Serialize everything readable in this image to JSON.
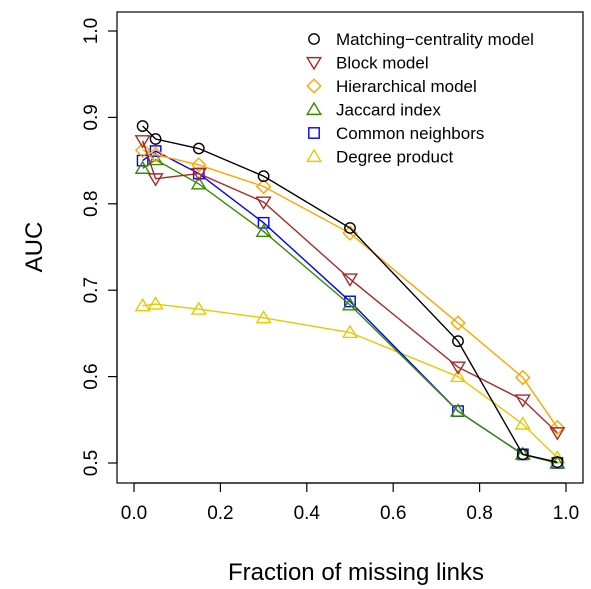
{
  "chart_data": {
    "type": "line",
    "title": "",
    "xlabel": "Fraction of missing links",
    "ylabel": "AUC",
    "xlim": [
      0.0,
      1.0
    ],
    "ylim": [
      0.5,
      1.0
    ],
    "x_ticks": [
      "0.0",
      "0.2",
      "0.4",
      "0.6",
      "0.8",
      "1.0"
    ],
    "y_ticks": [
      "0.5",
      "0.6",
      "0.7",
      "0.8",
      "0.9",
      "1.0"
    ],
    "grid": false,
    "legend_position": "top-right",
    "series": [
      {
        "name": "Matching−centrality model",
        "marker": "circle",
        "color": "#000000",
        "line_color": "#000000",
        "x": [
          0.02,
          0.05,
          0.15,
          0.3,
          0.5,
          0.75,
          0.9,
          0.98
        ],
        "values": [
          0.89,
          0.875,
          0.864,
          0.832,
          0.772,
          0.641,
          0.51,
          0.501
        ]
      },
      {
        "name": "Block model",
        "marker": "triangle-down",
        "color": "#a52a2a",
        "line_color": "#a52a2a",
        "x": [
          0.02,
          0.05,
          0.15,
          0.3,
          0.5,
          0.75,
          0.9,
          0.98
        ],
        "values": [
          0.873,
          0.829,
          0.835,
          0.802,
          0.713,
          0.611,
          0.573,
          0.535
        ]
      },
      {
        "name": "Hierarchical model",
        "marker": "diamond",
        "color": "#ffa500",
        "line_color": "#ffa500",
        "x": [
          0.02,
          0.05,
          0.15,
          0.3,
          0.5,
          0.75,
          0.9,
          0.98
        ],
        "values": [
          0.862,
          0.857,
          0.845,
          0.82,
          0.766,
          0.662,
          0.599,
          0.541
        ]
      },
      {
        "name": "Jaccard index",
        "marker": "triangle-up",
        "color": "#3a8a00",
        "line_color": "#3a8a00",
        "x": [
          0.02,
          0.05,
          0.15,
          0.3,
          0.5,
          0.75,
          0.9,
          0.98
        ],
        "values": [
          0.841,
          0.851,
          0.823,
          0.768,
          0.683,
          0.56,
          0.51,
          0.5
        ]
      },
      {
        "name": "Common neighbors",
        "marker": "square",
        "color": "#0000ff",
        "line_color": "#0000ff",
        "x": [
          0.02,
          0.05,
          0.15,
          0.3,
          0.5,
          0.75,
          0.9,
          0.98
        ],
        "values": [
          0.85,
          0.861,
          0.835,
          0.778,
          0.687,
          0.56,
          0.51,
          0.5
        ]
      },
      {
        "name": "Degree product",
        "marker": "triangle-up",
        "color": "#e8c800",
        "line_color": "#e8c800",
        "x": [
          0.02,
          0.05,
          0.15,
          0.3,
          0.5,
          0.75,
          0.9,
          0.98
        ],
        "values": [
          0.682,
          0.684,
          0.678,
          0.668,
          0.651,
          0.6,
          0.545,
          0.506
        ]
      }
    ]
  }
}
